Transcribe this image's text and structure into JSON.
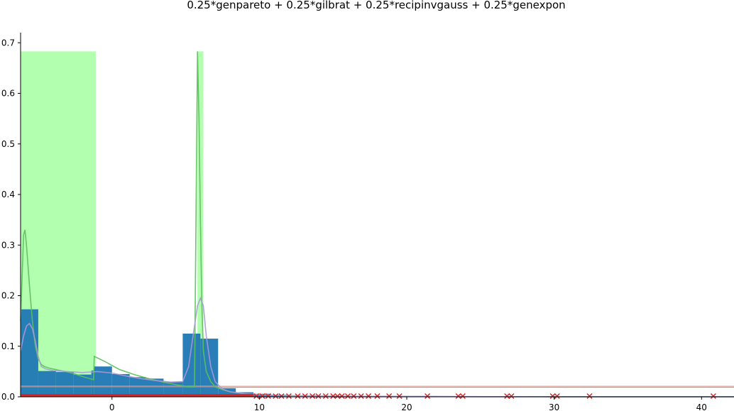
{
  "chart_data": {
    "type": "bar",
    "title": "0.25*genpareto + 0.25*gilbrat + 0.25*recipinvgauss + 0.25*genexpon",
    "xlabel": "",
    "ylabel": "",
    "xlim": [
      -6.2,
      42.2
    ],
    "ylim": [
      0,
      0.72
    ],
    "grid": false,
    "xticks": [
      0,
      10,
      20,
      30,
      40
    ],
    "yticks": [
      0.0,
      0.1,
      0.2,
      0.3,
      0.4,
      0.5,
      0.6,
      0.7
    ],
    "histogram": {
      "color": "#1f77b4",
      "bins": [
        {
          "x0": -6.2,
          "x1": -5.0,
          "value": 0.173
        },
        {
          "x0": -5.0,
          "x1": -3.8,
          "value": 0.051
        },
        {
          "x0": -3.8,
          "x1": -2.6,
          "value": 0.049
        },
        {
          "x0": -2.6,
          "x1": -1.4,
          "value": 0.044
        },
        {
          "x0": -1.4,
          "x1": -1.2,
          "value": 0.052
        },
        {
          "x0": -1.2,
          "x1": 0.0,
          "value": 0.06
        },
        {
          "x0": 0.0,
          "x1": 1.2,
          "value": 0.045
        },
        {
          "x0": 1.2,
          "x1": 2.3,
          "value": 0.039
        },
        {
          "x0": 2.3,
          "x1": 3.5,
          "value": 0.036
        },
        {
          "x0": 3.5,
          "x1": 4.8,
          "value": 0.03
        },
        {
          "x0": 4.8,
          "x1": 6.0,
          "value": 0.125
        },
        {
          "x0": 6.0,
          "x1": 7.2,
          "value": 0.115
        },
        {
          "x0": 7.2,
          "x1": 8.4,
          "value": 0.017
        },
        {
          "x0": 8.4,
          "x1": 9.6,
          "value": 0.009
        },
        {
          "x0": 9.6,
          "x1": 10.8,
          "value": 0.006
        },
        {
          "x0": 10.8,
          "x1": 12.0,
          "value": 0.004
        },
        {
          "x0": 12.0,
          "x1": 14.0,
          "value": 0.003
        },
        {
          "x0": 14.0,
          "x1": 17.0,
          "value": 0.002
        },
        {
          "x0": 17.0,
          "x1": 22.0,
          "value": 0.0015
        },
        {
          "x0": 22.0,
          "x1": 30.0,
          "value": 0.001
        },
        {
          "x0": 30.0,
          "x1": 42.2,
          "value": 0.0008
        }
      ]
    },
    "highlight_regions": [
      {
        "x0": -6.2,
        "x1": -1.1,
        "ymax": 0.683,
        "color": "#b3ffb0"
      },
      {
        "x0": 5.8,
        "x1": 6.2,
        "ymax": 0.683,
        "color": "#b3ffb0"
      }
    ],
    "series": [
      {
        "color": "#5cbf5c",
        "x": [
          -6.2,
          -6.0,
          -5.9,
          -5.8,
          -5.6,
          -5.4,
          -5.2,
          -5.0,
          -4.8,
          -4.6,
          -4.3,
          -4.0,
          -3.5,
          -3.0,
          -2.5,
          -2.0,
          -1.5,
          -1.25,
          -1.2,
          -0.5,
          0.5,
          1.5,
          2.5,
          3.5,
          4.5,
          5.2,
          5.6,
          5.8,
          5.9,
          6.0,
          6.1,
          6.2,
          6.4,
          6.7,
          7.0,
          7.5,
          8.0,
          9.0,
          10.0,
          12.0,
          15.0,
          20.0,
          25.0,
          30.0,
          35.0,
          42.2
        ],
        "y": [
          0.15,
          0.32,
          0.33,
          0.3,
          0.22,
          0.15,
          0.1,
          0.075,
          0.064,
          0.06,
          0.057,
          0.055,
          0.052,
          0.049,
          0.045,
          0.04,
          0.036,
          0.034,
          0.08,
          0.07,
          0.054,
          0.044,
          0.036,
          0.029,
          0.023,
          0.02,
          0.02,
          0.683,
          0.55,
          0.35,
          0.18,
          0.09,
          0.05,
          0.03,
          0.02,
          0.014,
          0.01,
          0.006,
          0.004,
          0.002,
          0.001,
          0.0005,
          0.0003,
          0.0002,
          0.0001,
          0.0001
        ]
      },
      {
        "color": "#aa9ad6",
        "x": [
          -6.2,
          -6.0,
          -5.8,
          -5.6,
          -5.4,
          -5.2,
          -5.0,
          -4.8,
          -4.5,
          -4.0,
          -3.0,
          -2.0,
          -1.0,
          0.0,
          1.0,
          2.0,
          3.0,
          4.0,
          4.8,
          5.2,
          5.5,
          5.8,
          6.0,
          6.2,
          6.4,
          6.7,
          7.0,
          7.5,
          8.0,
          9.0,
          10.0,
          12.0,
          15.0,
          20.0,
          30.0,
          42.2
        ],
        "y": [
          0.09,
          0.12,
          0.14,
          0.145,
          0.135,
          0.11,
          0.08,
          0.06,
          0.055,
          0.052,
          0.05,
          0.048,
          0.05,
          0.047,
          0.041,
          0.036,
          0.032,
          0.029,
          0.03,
          0.06,
          0.12,
          0.18,
          0.195,
          0.18,
          0.12,
          0.06,
          0.03,
          0.015,
          0.01,
          0.006,
          0.004,
          0.002,
          0.0012,
          0.0006,
          0.0002,
          0.0001
        ]
      }
    ],
    "reference_lines": [
      {
        "y": 0.021,
        "color": "#ff9999"
      },
      {
        "y": 0.019,
        "color": "#6a9e6a"
      }
    ],
    "rug_points": {
      "color": "#d62728",
      "x": [
        9.8,
        10.2,
        10.6,
        11.1,
        11.5,
        12.0,
        12.6,
        13.1,
        13.6,
        14.0,
        14.5,
        15.0,
        15.3,
        15.6,
        16.0,
        16.4,
        16.9,
        17.4,
        18.0,
        18.8,
        19.5,
        21.4,
        23.5,
        23.8,
        26.8,
        27.1,
        29.9,
        30.2,
        32.4,
        40.8
      ]
    }
  }
}
